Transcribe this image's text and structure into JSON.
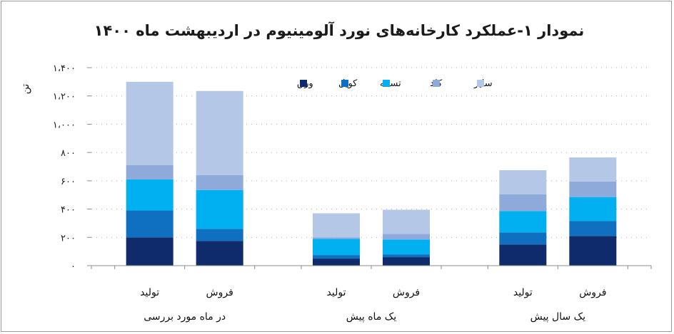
{
  "chart_data": {
    "type": "bar",
    "stacked": true,
    "title": "نمودار ۱-عملکرد کارخانه‌های نورد آلومینیوم در اردیبهشت ماه ۱۴۰۰",
    "ylabel": "تن",
    "ylim": [
      0,
      1400
    ],
    "yticks": [
      0,
      200,
      400,
      600,
      800,
      1000,
      1200,
      1400
    ],
    "ytick_labels": [
      "۰",
      "۲۰۰",
      "۴۰۰",
      "۶۰۰",
      "۸۰۰",
      "۱،۰۰۰",
      "۱،۲۰۰",
      "۱،۴۰۰"
    ],
    "grid": true,
    "legend_position": "top",
    "groups": [
      {
        "label": "در ماه مورد بررسی",
        "categories": [
          "تولید",
          "فروش"
        ]
      },
      {
        "label": "یک ماه پیش",
        "categories": [
          "تولید",
          "فروش"
        ]
      },
      {
        "label": "یک سال پیش",
        "categories": [
          "تولید",
          "فروش"
        ]
      }
    ],
    "series": [
      {
        "name": "ورق",
        "color": "#0f2b6b",
        "values": [
          200,
          175,
          50,
          60,
          150,
          210
        ]
      },
      {
        "name": "کویل",
        "color": "#0f6fc0",
        "values": [
          190,
          85,
          25,
          20,
          85,
          105
        ]
      },
      {
        "name": "تسمه",
        "color": "#00b0f0",
        "values": [
          220,
          275,
          115,
          105,
          150,
          170
        ]
      },
      {
        "name": "کلد",
        "color": "#8eaadb",
        "values": [
          100,
          105,
          10,
          40,
          120,
          110
        ]
      },
      {
        "name": "سایر",
        "color": "#b4c7e7",
        "values": [
          590,
          595,
          170,
          170,
          170,
          170
        ]
      }
    ]
  }
}
